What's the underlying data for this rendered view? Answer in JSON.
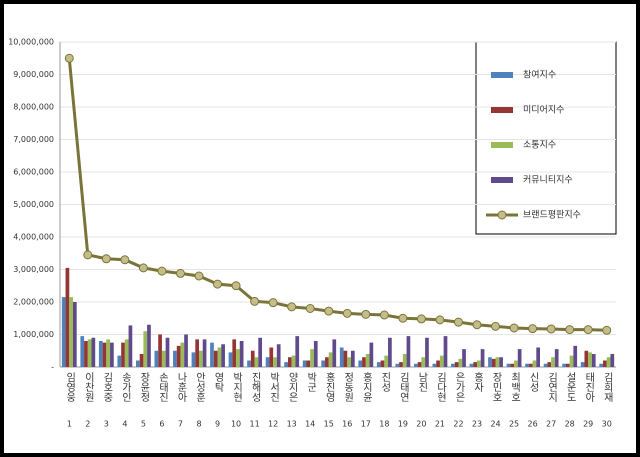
{
  "chart_data": {
    "type": "combo",
    "categories": [
      "임영웅",
      "이찬원",
      "김호중",
      "송가인",
      "장윤정",
      "손태진",
      "나훈아",
      "안성훈",
      "영탁",
      "박지현",
      "진해성",
      "박서진",
      "양지은",
      "박군",
      "홍진영",
      "정동원",
      "홍지윤",
      "진성",
      "김태연",
      "남진",
      "김다현",
      "은가은",
      "홍자",
      "장민호",
      "최백호",
      "신성",
      "김연지",
      "설운도",
      "태진아",
      "김희재"
    ],
    "ranks": [
      1,
      2,
      3,
      4,
      5,
      6,
      7,
      8,
      9,
      10,
      11,
      12,
      13,
      14,
      15,
      16,
      17,
      18,
      19,
      20,
      21,
      22,
      23,
      24,
      25,
      26,
      27,
      28,
      29,
      30
    ],
    "series": [
      {
        "name": "참여지수",
        "type": "bar",
        "color": "#4f81bd",
        "values": [
          2150000,
          950000,
          800000,
          350000,
          200000,
          500000,
          500000,
          450000,
          750000,
          450000,
          200000,
          300000,
          150000,
          200000,
          200000,
          600000,
          200000,
          150000,
          100000,
          100000,
          100000,
          100000,
          100000,
          300000,
          100000,
          100000,
          100000,
          100000,
          150000,
          100000
        ]
      },
      {
        "name": "미디어지수",
        "type": "bar",
        "color": "#943634",
        "values": [
          3050000,
          800000,
          750000,
          750000,
          400000,
          1000000,
          650000,
          850000,
          500000,
          850000,
          500000,
          600000,
          300000,
          200000,
          300000,
          500000,
          300000,
          200000,
          150000,
          150000,
          200000,
          150000,
          150000,
          250000,
          100000,
          100000,
          150000,
          100000,
          500000,
          200000
        ]
      },
      {
        "name": "소통지수",
        "type": "bar",
        "color": "#9bbb59",
        "values": [
          2150000,
          850000,
          850000,
          850000,
          1100000,
          500000,
          750000,
          500000,
          600000,
          550000,
          300000,
          300000,
          350000,
          550000,
          450000,
          300000,
          400000,
          350000,
          400000,
          300000,
          350000,
          250000,
          200000,
          300000,
          200000,
          200000,
          300000,
          350000,
          450000,
          300000
        ]
      },
      {
        "name": "커뮤니티지수",
        "type": "bar",
        "color": "#604a8b",
        "values": [
          2000000,
          900000,
          750000,
          1280000,
          1300000,
          900000,
          1000000,
          850000,
          700000,
          800000,
          900000,
          700000,
          950000,
          800000,
          850000,
          500000,
          750000,
          900000,
          950000,
          900000,
          950000,
          550000,
          550000,
          300000,
          550000,
          600000,
          550000,
          650000,
          400000,
          400000
        ]
      },
      {
        "name": "브랜드평판지수",
        "type": "line",
        "color": "#7a7438",
        "marker_color": "#c4bd8a",
        "values": [
          9500000,
          3450000,
          3330000,
          3300000,
          3050000,
          2950000,
          2880000,
          2800000,
          2550000,
          2500000,
          2020000,
          1980000,
          1850000,
          1800000,
          1720000,
          1650000,
          1620000,
          1600000,
          1500000,
          1480000,
          1450000,
          1380000,
          1300000,
          1250000,
          1200000,
          1180000,
          1170000,
          1150000,
          1150000,
          1130000
        ]
      }
    ],
    "ylim": [
      0,
      10000000
    ],
    "yticks": [
      {
        "value": 0,
        "label": "-"
      },
      {
        "value": 1000000,
        "label": "1,000,000"
      },
      {
        "value": 2000000,
        "label": "2,000,000"
      },
      {
        "value": 3000000,
        "label": "3,000,000"
      },
      {
        "value": 4000000,
        "label": "4,000,000"
      },
      {
        "value": 5000000,
        "label": "5,000,000"
      },
      {
        "value": 6000000,
        "label": "6,000,000"
      },
      {
        "value": 7000000,
        "label": "7,000,000"
      },
      {
        "value": 8000000,
        "label": "8,000,000"
      },
      {
        "value": 9000000,
        "label": "9,000,000"
      },
      {
        "value": 10000000,
        "label": "10,000,000"
      }
    ],
    "grid": true,
    "legend": "upper right"
  }
}
